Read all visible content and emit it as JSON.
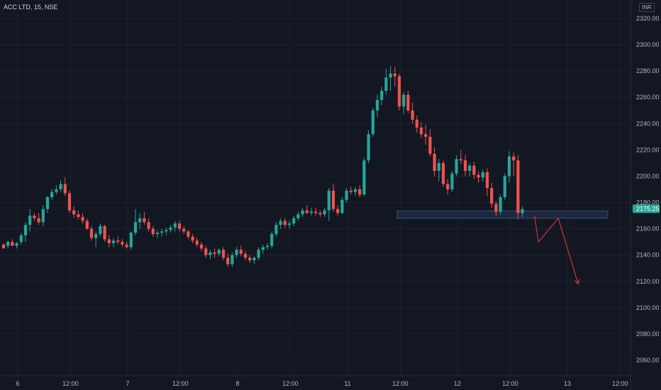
{
  "header": {
    "symbol": "ACC LTD, 15, NSE",
    "currency": "INR"
  },
  "colors": {
    "background": "#131722",
    "up": "#26a69a",
    "down": "#ef5350",
    "grid": "#1e222d",
    "zone_fill": "#1f2a44",
    "zone_border": "#3b4d7a",
    "arrow": "#c9363a",
    "price_tag": "#26a69a"
  },
  "chart_data": {
    "type": "candlestick",
    "y_ticks": [
      "2320.00",
      "2300.00",
      "2280.00",
      "2260.00",
      "2240.00",
      "2220.00",
      "2200.00",
      "2180.00",
      "2160.00",
      "2140.00",
      "2120.00",
      "2100.00",
      "2080.00",
      "2060.00"
    ],
    "y_tick_values": [
      2320,
      2300,
      2280,
      2260,
      2240,
      2220,
      2200,
      2180,
      2160,
      2140,
      2120,
      2100,
      2080,
      2060
    ],
    "ylim": [
      2053,
      2324
    ],
    "x_tick_labels": [
      "6",
      "12:00",
      "7",
      "12:00",
      "8",
      "12:00",
      "11",
      "12:00",
      "12",
      "12:00",
      "13",
      "12:00"
    ],
    "x_tick_bars": [
      0,
      12,
      25,
      37,
      50,
      62,
      75,
      87,
      100,
      112,
      125,
      137
    ],
    "last_price": "2175.25",
    "last_price_value": 2175.25,
    "candles": [
      [
        2148,
        2149,
        2146,
        2145
      ],
      [
        2147,
        2151,
        2145,
        2150
      ],
      [
        2150,
        2152,
        2148,
        2147
      ],
      [
        2147,
        2150,
        2145,
        2149
      ],
      [
        2150,
        2157,
        2148,
        2155
      ],
      [
        2155,
        2165,
        2150,
        2163
      ],
      [
        2163,
        2175,
        2158,
        2170
      ],
      [
        2170,
        2172,
        2166,
        2168
      ],
      [
        2168,
        2172,
        2163,
        2165
      ],
      [
        2165,
        2178,
        2162,
        2175
      ],
      [
        2175,
        2185,
        2172,
        2184
      ],
      [
        2184,
        2190,
        2182,
        2188
      ],
      [
        2188,
        2193,
        2186,
        2190
      ],
      [
        2190,
        2197,
        2188,
        2194
      ],
      [
        2194,
        2199,
        2185,
        2187
      ],
      [
        2187,
        2189,
        2172,
        2174
      ],
      [
        2174,
        2177,
        2168,
        2171
      ],
      [
        2171,
        2174,
        2167,
        2169
      ],
      [
        2169,
        2172,
        2164,
        2166
      ],
      [
        2166,
        2168,
        2159,
        2160
      ],
      [
        2160,
        2162,
        2151,
        2153
      ],
      [
        2153,
        2158,
        2146,
        2156
      ],
      [
        2156,
        2164,
        2154,
        2162
      ],
      [
        2162,
        2163,
        2150,
        2152
      ],
      [
        2152,
        2155,
        2146,
        2149
      ],
      [
        2149,
        2153,
        2146,
        2151
      ],
      [
        2151,
        2154,
        2148,
        2150
      ],
      [
        2150,
        2152,
        2146,
        2148
      ],
      [
        2148,
        2150,
        2145,
        2146
      ],
      [
        2146,
        2158,
        2144,
        2157
      ],
      [
        2157,
        2175,
        2155,
        2165
      ],
      [
        2165,
        2172,
        2160,
        2168
      ],
      [
        2168,
        2173,
        2163,
        2165
      ],
      [
        2165,
        2168,
        2158,
        2160
      ],
      [
        2160,
        2162,
        2154,
        2156
      ],
      [
        2156,
        2159,
        2153,
        2157
      ],
      [
        2157,
        2160,
        2154,
        2158
      ],
      [
        2158,
        2161,
        2155,
        2159
      ],
      [
        2159,
        2163,
        2157,
        2161
      ],
      [
        2161,
        2166,
        2158,
        2164
      ],
      [
        2164,
        2166,
        2158,
        2160
      ],
      [
        2160,
        2162,
        2156,
        2158
      ],
      [
        2158,
        2159,
        2152,
        2154
      ],
      [
        2154,
        2156,
        2149,
        2151
      ],
      [
        2151,
        2153,
        2146,
        2148
      ],
      [
        2148,
        2150,
        2143,
        2145
      ],
      [
        2145,
        2147,
        2138,
        2140
      ],
      [
        2140,
        2144,
        2137,
        2142
      ],
      [
        2142,
        2145,
        2138,
        2141
      ],
      [
        2141,
        2145,
        2139,
        2144
      ],
      [
        2144,
        2146,
        2136,
        2138
      ],
      [
        2138,
        2141,
        2131,
        2133
      ],
      [
        2133,
        2142,
        2131,
        2140
      ],
      [
        2140,
        2146,
        2138,
        2144
      ],
      [
        2144,
        2147,
        2139,
        2141
      ],
      [
        2141,
        2143,
        2136,
        2138
      ],
      [
        2138,
        2140,
        2134,
        2136
      ],
      [
        2136,
        2139,
        2133,
        2138
      ],
      [
        2138,
        2146,
        2136,
        2144
      ],
      [
        2144,
        2148,
        2141,
        2146
      ],
      [
        2146,
        2149,
        2144,
        2147
      ],
      [
        2147,
        2158,
        2145,
        2156
      ],
      [
        2156,
        2165,
        2154,
        2163
      ],
      [
        2163,
        2168,
        2160,
        2166
      ],
      [
        2166,
        2168,
        2161,
        2163
      ],
      [
        2163,
        2166,
        2160,
        2164
      ],
      [
        2164,
        2170,
        2162,
        2168
      ],
      [
        2168,
        2173,
        2166,
        2171
      ],
      [
        2171,
        2176,
        2169,
        2174
      ],
      [
        2174,
        2178,
        2171,
        2172
      ],
      [
        2172,
        2176,
        2170,
        2173
      ],
      [
        2173,
        2176,
        2170,
        2172
      ],
      [
        2172,
        2174,
        2169,
        2171
      ],
      [
        2171,
        2176,
        2169,
        2174
      ],
      [
        2174,
        2191,
        2166,
        2189
      ],
      [
        2189,
        2194,
        2173,
        2175
      ],
      [
        2175,
        2178,
        2170,
        2172
      ],
      [
        2172,
        2184,
        2171,
        2182
      ],
      [
        2182,
        2191,
        2180,
        2189
      ],
      [
        2189,
        2192,
        2186,
        2188
      ],
      [
        2188,
        2192,
        2185,
        2190
      ],
      [
        2190,
        2193,
        2184,
        2186
      ],
      [
        2186,
        2214,
        2185,
        2212
      ],
      [
        2212,
        2235,
        2210,
        2232
      ],
      [
        2232,
        2252,
        2230,
        2250
      ],
      [
        2250,
        2262,
        2245,
        2258
      ],
      [
        2258,
        2268,
        2254,
        2265
      ],
      [
        2265,
        2282,
        2262,
        2275
      ],
      [
        2275,
        2284,
        2265,
        2278
      ],
      [
        2278,
        2283,
        2268,
        2276
      ],
      [
        2276,
        2278,
        2250,
        2253
      ],
      [
        2253,
        2264,
        2247,
        2262
      ],
      [
        2262,
        2265,
        2248,
        2250
      ],
      [
        2250,
        2256,
        2240,
        2243
      ],
      [
        2243,
        2246,
        2233,
        2237
      ],
      [
        2237,
        2241,
        2229,
        2232
      ],
      [
        2232,
        2239,
        2224,
        2230
      ],
      [
        2230,
        2236,
        2215,
        2217
      ],
      [
        2217,
        2222,
        2200,
        2204
      ],
      [
        2204,
        2213,
        2196,
        2210
      ],
      [
        2210,
        2212,
        2192,
        2194
      ],
      [
        2194,
        2198,
        2186,
        2190
      ],
      [
        2190,
        2204,
        2188,
        2202
      ],
      [
        2202,
        2216,
        2200,
        2213
      ],
      [
        2213,
        2220,
        2209,
        2212
      ],
      [
        2212,
        2216,
        2200,
        2204
      ],
      [
        2204,
        2210,
        2200,
        2208
      ],
      [
        2208,
        2211,
        2198,
        2201
      ],
      [
        2201,
        2204,
        2195,
        2199
      ],
      [
        2199,
        2205,
        2196,
        2203
      ],
      [
        2203,
        2206,
        2185,
        2191
      ],
      [
        2191,
        2195,
        2176,
        2179
      ],
      [
        2179,
        2181,
        2170,
        2173
      ],
      [
        2173,
        2186,
        2171,
        2184
      ],
      [
        2184,
        2202,
        2182,
        2200
      ],
      [
        2200,
        2219,
        2195,
        2215
      ],
      [
        2215,
        2218,
        2200,
        2212
      ],
      [
        2212,
        2216,
        2167,
        2172
      ],
      [
        2172,
        2177,
        2169,
        2175
      ]
    ],
    "support_zone": {
      "top": 2173,
      "bottom": 2168,
      "start_bar": 90
    },
    "projection_path": [
      [
        2170,
        0
      ],
      [
        2150,
        1
      ],
      [
        2168,
        6
      ],
      [
        2118,
        11
      ]
    ]
  }
}
